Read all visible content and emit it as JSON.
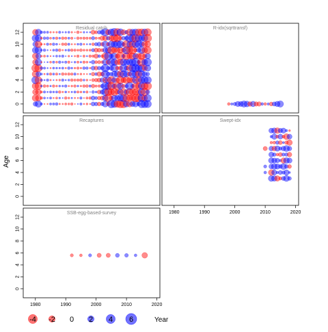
{
  "chart_data": {
    "type": "scatter",
    "ylabel": "Age",
    "xlabel": "Year",
    "colors": {
      "positive": "#0000ff",
      "negative": "#ff0000",
      "alpha": 0.45
    },
    "panels": [
      {
        "title": "Residual catch",
        "x_axis_shown": false,
        "y_axis_shown": true,
        "xlim": [
          1976,
          2021
        ],
        "ylim": [
          -1.5,
          13.5
        ],
        "years": [
          1980,
          2017
        ],
        "ages": [
          0,
          12
        ],
        "pattern": "dense"
      },
      {
        "title": "R-idx(sqrttransf)",
        "x_axis_shown": false,
        "y_axis_shown": false,
        "xlim": [
          1976,
          2021
        ],
        "ylim": [
          -1.5,
          13.5
        ],
        "points": [
          [
            1998,
            0,
            -0.4
          ],
          [
            1999,
            0,
            0.3
          ],
          [
            2000,
            0,
            0.6
          ],
          [
            2001,
            0,
            1.4
          ],
          [
            2002,
            0,
            1.3
          ],
          [
            2003,
            0,
            2.0
          ],
          [
            2004,
            0,
            1.7
          ],
          [
            2005,
            0,
            -1.1
          ],
          [
            2006,
            0,
            1.5
          ],
          [
            2007,
            0,
            -1.0
          ],
          [
            2008,
            0,
            -1.0
          ],
          [
            2009,
            0,
            0.4
          ],
          [
            2010,
            0,
            -0.4
          ],
          [
            2011,
            0,
            0.3
          ],
          [
            2012,
            0,
            -0.8
          ],
          [
            2013,
            0,
            0.9
          ],
          [
            2014,
            0,
            1.5
          ],
          [
            2015,
            0,
            2.0
          ]
        ]
      },
      {
        "title": "Recaptures",
        "x_axis_shown": false,
        "y_axis_shown": true,
        "xlim": [
          1976,
          2021
        ],
        "ylim": [
          -1.5,
          13.5
        ],
        "points": []
      },
      {
        "title": "Swept-idx",
        "x_axis_shown": true,
        "y_axis_shown": false,
        "xlim": [
          1976,
          2021
        ],
        "ylim": [
          -1.5,
          13.5
        ],
        "years": [
          2010,
          2018
        ],
        "ages": [
          3,
          11
        ],
        "pattern": "swept"
      },
      {
        "title": "SSB-egg-based-survey",
        "x_axis_shown": true,
        "y_axis_shown": true,
        "xlim": [
          1976,
          2021
        ],
        "ylim": [
          -1.5,
          13.5
        ],
        "points": [
          [
            1992,
            5.6,
            -0.5
          ],
          [
            1995,
            5.6,
            -0.4
          ],
          [
            1998,
            5.6,
            0.5
          ],
          [
            2001,
            5.6,
            -0.9
          ],
          [
            2004,
            5.6,
            -0.9
          ],
          [
            2007,
            5.6,
            0.8
          ],
          [
            2010,
            5.6,
            0.7
          ],
          [
            2013,
            5.6,
            0.4
          ],
          [
            2016,
            5.6,
            -1.6
          ]
        ]
      }
    ],
    "x_ticks": [
      "1980",
      "1990",
      "2000",
      "2010",
      "2020"
    ],
    "y_ticks": [
      "0",
      "2",
      "4",
      "6",
      "8",
      "10",
      "12"
    ],
    "legend": [
      {
        "label": "-4",
        "value": -4
      },
      {
        "label": "-2",
        "value": -2
      },
      {
        "label": "0",
        "value": 0
      },
      {
        "label": "2",
        "value": 2
      },
      {
        "label": "4",
        "value": 4
      },
      {
        "label": "6",
        "value": 6
      }
    ]
  }
}
